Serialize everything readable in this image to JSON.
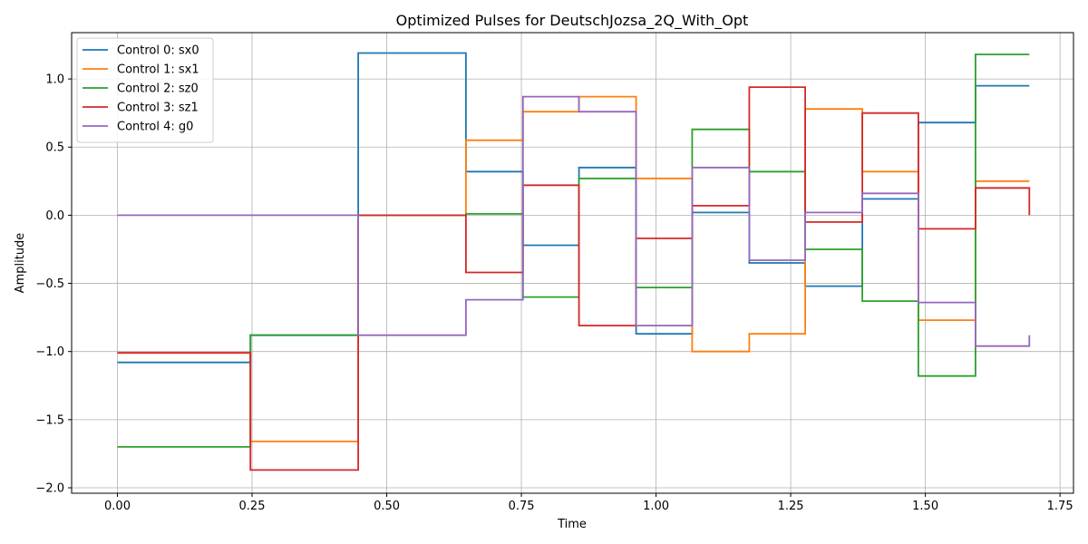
{
  "chart_data": {
    "type": "line",
    "step": "post",
    "title": "Optimized Pulses for DeutschJozsa_2Q_With_Opt",
    "xlabel": "Time",
    "ylabel": "Amplitude",
    "xlim": [
      -0.085,
      1.775
    ],
    "ylim": [
      -2.04,
      1.34
    ],
    "xticks": [
      0.0,
      0.25,
      0.5,
      0.75,
      1.0,
      1.25,
      1.5,
      1.75
    ],
    "xtick_labels": [
      "0.00",
      "0.25",
      "0.50",
      "0.75",
      "1.00",
      "1.25",
      "1.50",
      "1.75"
    ],
    "yticks": [
      -2.0,
      -1.5,
      -1.0,
      -0.5,
      0.0,
      0.5,
      1.0
    ],
    "ytick_labels": [
      "−2.0",
      "−1.5",
      "−1.0",
      "−0.5",
      "0.0",
      "0.5",
      "1.0"
    ],
    "grid": true,
    "legend_position": "top-left",
    "x": [
      0.0,
      0.247,
      0.447,
      0.647,
      0.753,
      0.857,
      0.963,
      1.067,
      1.173,
      1.277,
      1.383,
      1.487,
      1.593,
      1.693
    ],
    "series": [
      {
        "name": "Control 0: sx0",
        "color": "#1f77b4",
        "values": [
          -1.08,
          -0.88,
          1.19,
          0.32,
          -0.22,
          0.35,
          -0.87,
          0.02,
          -0.35,
          -0.52,
          0.12,
          0.68,
          0.95,
          0.95
        ]
      },
      {
        "name": "Control 1: sx1",
        "color": "#ff7f0e",
        "values": [
          -1.01,
          -1.66,
          0.0,
          0.55,
          0.76,
          0.87,
          0.27,
          -1.0,
          -0.87,
          0.78,
          0.32,
          -0.77,
          0.25,
          0.25
        ]
      },
      {
        "name": "Control 2: sz0",
        "color": "#2ca02c",
        "values": [
          -1.7,
          -0.88,
          0.0,
          0.01,
          -0.6,
          0.27,
          -0.53,
          0.63,
          0.32,
          -0.25,
          -0.63,
          -1.18,
          1.18,
          1.18
        ]
      },
      {
        "name": "Control 3: sz1",
        "color": "#d62728",
        "values": [
          -1.01,
          -1.87,
          0.0,
          -0.42,
          0.22,
          -0.81,
          -0.17,
          0.07,
          0.94,
          -0.05,
          0.75,
          -0.1,
          0.2,
          0.0
        ]
      },
      {
        "name": "Control 4: g0",
        "color": "#9467bd",
        "values": [
          0.0,
          0.0,
          -0.88,
          -0.62,
          0.87,
          0.76,
          -0.81,
          0.35,
          -0.33,
          0.02,
          0.16,
          -0.64,
          -0.96,
          -0.88
        ]
      }
    ]
  }
}
